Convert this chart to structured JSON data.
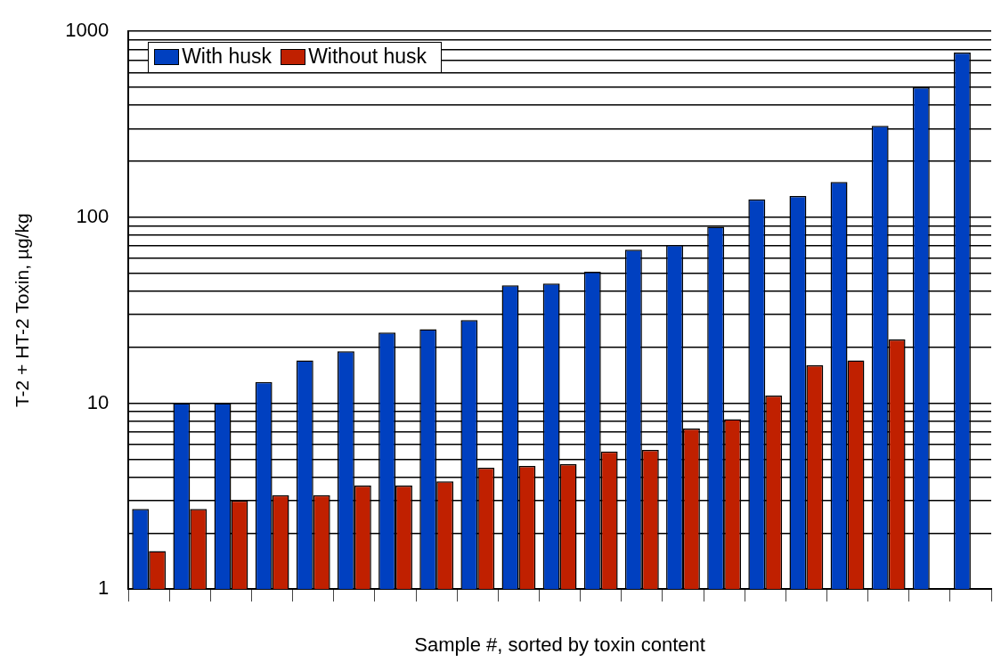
{
  "chart_data": {
    "type": "bar",
    "xlabel": "Sample #, sorted by toxin content",
    "ylabel": "T-2 + HT-2 Toxin, µg/kg",
    "categories": [
      null,
      null,
      null,
      null,
      null,
      null,
      null,
      null,
      null,
      null,
      null,
      null,
      null,
      null,
      null,
      null,
      null,
      null,
      null,
      null,
      null
    ],
    "series": [
      {
        "name": "With husk",
        "color": "#0040c0",
        "values": [
          2.7,
          10,
          10,
          13,
          17,
          19,
          24,
          25,
          28,
          43,
          44,
          51,
          67,
          71,
          89,
          125,
          130,
          155,
          310,
          500,
          770
        ]
      },
      {
        "name": "Without husk",
        "color": "#c02000",
        "values": [
          1.6,
          2.7,
          3.0,
          3.2,
          3.2,
          3.6,
          3.6,
          3.8,
          4.5,
          4.6,
          4.7,
          5.5,
          5.6,
          7.3,
          8.2,
          11,
          16,
          17,
          22,
          null,
          null
        ]
      }
    ],
    "log": "y",
    "ylim": [
      1,
      1000
    ],
    "yticks": [
      1,
      {
        "value": 2,
        "label": null
      },
      {
        "value": 3,
        "label": null
      },
      {
        "value": 4,
        "label": null
      },
      {
        "value": 5,
        "label": null
      },
      {
        "value": 6,
        "label": null
      },
      {
        "value": 7,
        "label": null
      },
      {
        "value": 8,
        "label": null
      },
      {
        "value": 9,
        "label": null
      },
      10,
      {
        "value": 20,
        "label": null
      },
      {
        "value": 30,
        "label": null
      },
      {
        "value": 40,
        "label": null
      },
      {
        "value": 50,
        "label": null
      },
      {
        "value": 60,
        "label": null
      },
      {
        "value": 70,
        "label": null
      },
      {
        "value": 80,
        "label": null
      },
      {
        "value": 90,
        "label": null
      },
      100,
      {
        "value": 200,
        "label": null
      },
      {
        "value": 300,
        "label": null
      },
      {
        "value": 400,
        "label": null
      },
      {
        "value": 500,
        "label": null
      },
      {
        "value": 600,
        "label": null
      },
      {
        "value": 700,
        "label": null
      },
      {
        "value": 800,
        "label": null
      },
      {
        "value": 900,
        "label": null
      },
      1000
    ],
    "grid": "y",
    "legend": "top left"
  }
}
